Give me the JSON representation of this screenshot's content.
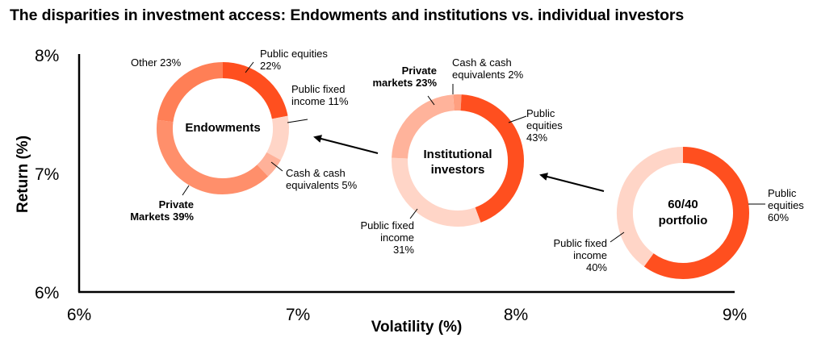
{
  "title": "The disparities in investment access: Endowments and institutions vs. individual investors",
  "chart_data": {
    "type": "scatter",
    "title": "The disparities in investment access: Endowments and institutions vs. individual investors",
    "xlabel": "Volatility (%)",
    "ylabel": "Return (%)",
    "xlim": [
      6,
      9
    ],
    "ylim": [
      6,
      8
    ],
    "x_ticks": [
      "6%",
      "7%",
      "8%",
      "9%"
    ],
    "y_ticks": [
      "6%",
      "7%",
      "8%"
    ],
    "points": [
      {
        "name": "Endowments",
        "x": 6.66,
        "y": 7.38,
        "allocation": [
          {
            "label": "Public equities 22%",
            "value": 22,
            "color": "#ff4f1f"
          },
          {
            "label": "Public fixed income 11%",
            "value": 11,
            "color": "#ffd5c7"
          },
          {
            "label": "Cash & cash equivalents 5%",
            "value": 5,
            "color": "#ffb199"
          },
          {
            "label": "Private Markets 39%",
            "value": 39,
            "color": "#ff8f6b"
          },
          {
            "label": "Other 23%",
            "value": 23,
            "color": "#ff7f56"
          }
        ]
      },
      {
        "name": "Institutional investors",
        "x": 7.7,
        "y": 7.1,
        "allocation": [
          {
            "label": "Cash & cash equivalents 2%",
            "value": 2,
            "color": "#ff9f80"
          },
          {
            "label": "Public equities 43%",
            "value": 43,
            "color": "#ff4f1f"
          },
          {
            "label": "Public fixed income 31%",
            "value": 31,
            "color": "#ffd5c7"
          },
          {
            "label": "Private markets 23%",
            "value": 23,
            "color": "#ffb39b"
          }
        ]
      },
      {
        "name": "60/40 portfolio",
        "x": 8.7,
        "y": 6.7,
        "allocation": [
          {
            "label": "Public equities 60%",
            "value": 60,
            "color": "#ff4f1f"
          },
          {
            "label": "Public fixed income 40%",
            "value": 40,
            "color": "#ffd5c7"
          }
        ]
      }
    ],
    "arrows": [
      {
        "from": "60/40 portfolio",
        "to": "Institutional investors"
      },
      {
        "from": "Institutional investors",
        "to": "Endowments"
      }
    ],
    "legend": "none",
    "grid": false
  },
  "labels": {
    "endow_center": "Endowments",
    "inst_center_1": "Institutional",
    "inst_center_2": "investors",
    "p6040_center_1": "60/40",
    "p6040_center_2": "portfolio",
    "endow_eq_1": "Public equities",
    "endow_eq_2": "22%",
    "endow_pfi_1": "Public fixed",
    "endow_pfi_2": "income 11%",
    "endow_cash_1": "Cash & cash",
    "endow_cash_2": "equivalents 5%",
    "endow_priv_1": "Private",
    "endow_priv_2": "Markets 39%",
    "endow_other": "Other 23%",
    "inst_priv_1": "Private",
    "inst_priv_2": "markets 23%",
    "inst_cash_1": "Cash & cash",
    "inst_cash_2": "equivalents 2%",
    "inst_eq_1": "Public",
    "inst_eq_2": "equities",
    "inst_eq_3": "43%",
    "inst_pfi_1": "Public fixed",
    "inst_pfi_2": "income",
    "inst_pfi_3": "31%",
    "p_eq_1": "Public",
    "p_eq_2": "equities",
    "p_eq_3": "60%",
    "p_pfi_1": "Public fixed",
    "p_pfi_2": "income",
    "p_pfi_3": "40%"
  }
}
